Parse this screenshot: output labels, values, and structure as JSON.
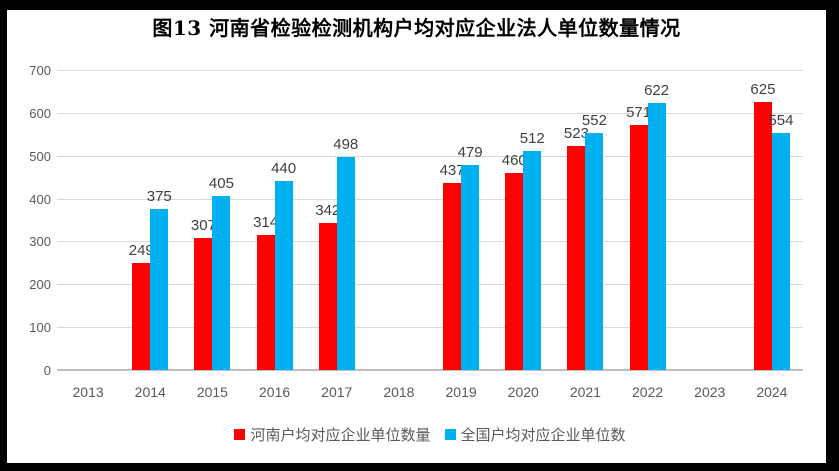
{
  "chart_data": {
    "type": "bar",
    "title": "图13  河南省检验检测机构户均对应企业法人单位数量情况",
    "categories": [
      "2013",
      "2014",
      "2015",
      "2016",
      "2017",
      "2018",
      "2019",
      "2020",
      "2021",
      "2022",
      "2023",
      "2024"
    ],
    "series": [
      {
        "name": "河南户均对应企业单位数量",
        "color": "#FF0000",
        "values": [
          null,
          249,
          307,
          314,
          342,
          null,
          437,
          460,
          523,
          571,
          null,
          625
        ]
      },
      {
        "name": "全国户均对应企业单位数",
        "color": "#00B0F0",
        "values": [
          null,
          375,
          405,
          440,
          498,
          null,
          479,
          512,
          552,
          622,
          null,
          554
        ]
      }
    ],
    "ylim": [
      0,
      700
    ],
    "yticks": [
      0,
      100,
      200,
      300,
      400,
      500,
      600,
      700
    ],
    "xlabel": "",
    "ylabel": "",
    "grid": true,
    "data_labels": true,
    "legend_position": "bottom"
  },
  "styles": {
    "frame_border": "#000000",
    "background": "#FFFFFF",
    "gridline_color": "#D9D9D9",
    "axis_line_color": "#BFBFBF",
    "tick_label_color": "#595959",
    "data_label_color": "#404040",
    "title_color": "#000000"
  }
}
